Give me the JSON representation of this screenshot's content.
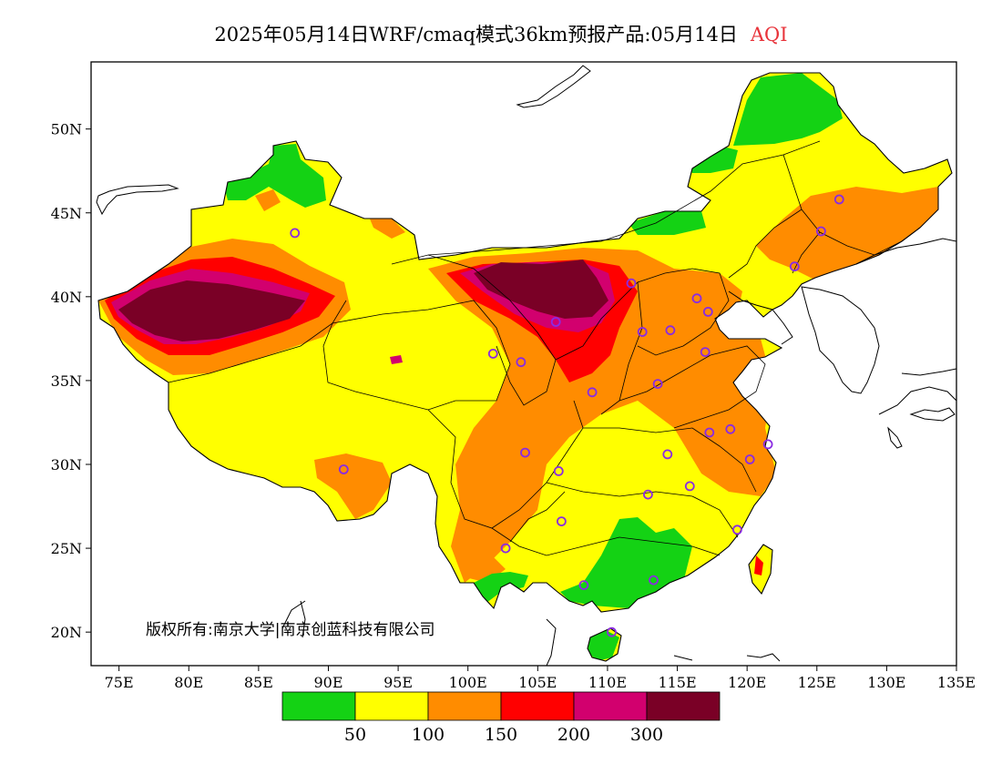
{
  "title": {
    "main": "2025年05月14日WRF/cmaq模式36km预报产品:05月14日",
    "variable": "AQI"
  },
  "copyright": "版权所有:南京大学|南京创蓝科技有限公司",
  "axes": {
    "x_ticks": [
      "75E",
      "80E",
      "85E",
      "90E",
      "95E",
      "100E",
      "105E",
      "110E",
      "115E",
      "120E",
      "125E",
      "130E",
      "135E"
    ],
    "y_ticks": [
      "20N",
      "25N",
      "30N",
      "35N",
      "40N",
      "45N",
      "50N"
    ],
    "lon_range": [
      73,
      135
    ],
    "lat_range": [
      18,
      54
    ]
  },
  "legend": {
    "colors": [
      "#14d214",
      "#ffff00",
      "#ff8c00",
      "#ff0000",
      "#d2006e",
      "#7a0026"
    ],
    "labels": [
      "50",
      "100",
      "150",
      "200",
      "300"
    ]
  },
  "colors": {
    "good": "#14d214",
    "moderate": "#ffff00",
    "sensitive": "#ff8c00",
    "unhealthy": "#ff0000",
    "very_unhealthy": "#d2006e",
    "hazardous": "#7a0026",
    "station_marker": "#8a2be2"
  },
  "map": {
    "stations": [
      [
        87.6,
        43.8
      ],
      [
        91.1,
        29.7
      ],
      [
        101.8,
        36.6
      ],
      [
        103.8,
        36.1
      ],
      [
        106.3,
        38.5
      ],
      [
        111.7,
        40.8
      ],
      [
        116.4,
        39.9
      ],
      [
        117.2,
        39.1
      ],
      [
        114.5,
        38.0
      ],
      [
        112.5,
        37.9
      ],
      [
        117.0,
        36.7
      ],
      [
        108.9,
        34.3
      ],
      [
        113.6,
        34.8
      ],
      [
        104.1,
        30.7
      ],
      [
        106.5,
        29.6
      ],
      [
        114.3,
        30.6
      ],
      [
        112.9,
        28.2
      ],
      [
        115.9,
        28.7
      ],
      [
        117.3,
        31.9
      ],
      [
        118.8,
        32.1
      ],
      [
        120.2,
        30.3
      ],
      [
        121.5,
        31.2
      ],
      [
        119.3,
        26.1
      ],
      [
        113.3,
        23.1
      ],
      [
        108.3,
        22.8
      ],
      [
        110.3,
        20.0
      ],
      [
        106.7,
        26.6
      ],
      [
        102.7,
        25.0
      ],
      [
        123.4,
        41.8
      ],
      [
        125.3,
        43.9
      ],
      [
        126.6,
        45.8
      ]
    ]
  }
}
